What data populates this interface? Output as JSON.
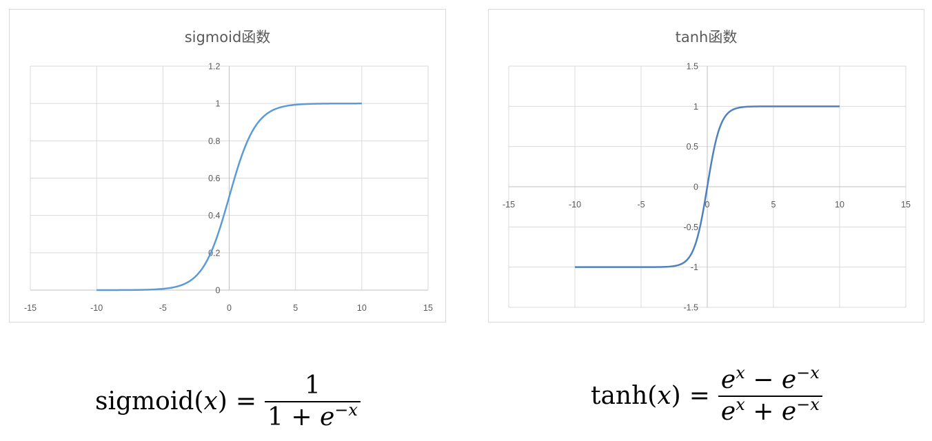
{
  "chart_data": [
    {
      "type": "line",
      "title": "sigmoid函数",
      "xlim": [
        -15,
        15
      ],
      "ylim": [
        0,
        1.2
      ],
      "x_ticks": [
        "-15",
        "-10",
        "-5",
        "0",
        "5",
        "10",
        "15"
      ],
      "y_ticks": [
        "0",
        "0.2",
        "0.4",
        "0.6",
        "0.8",
        "1",
        "1.2"
      ],
      "grid": true,
      "series": [
        {
          "color": "#5b9bd5",
          "x": [
            -10,
            -9,
            -8,
            -7,
            -6,
            -5,
            -4,
            -3,
            -2,
            -1,
            0,
            1,
            2,
            3,
            4,
            5,
            6,
            7,
            8,
            9,
            10
          ],
          "y": [
            4.54e-05,
            0.0001234,
            0.0003354,
            0.000911,
            0.002473,
            0.006693,
            0.017986,
            0.047426,
            0.119203,
            0.268941,
            0.5,
            0.731059,
            0.880797,
            0.952574,
            0.982014,
            0.993307,
            0.997527,
            0.999089,
            0.999665,
            0.999877,
            0.999955
          ]
        }
      ]
    },
    {
      "type": "line",
      "title": "tanh函数",
      "xlim": [
        -15,
        15
      ],
      "ylim": [
        -1.5,
        1.5
      ],
      "x_ticks": [
        "-15",
        "-10",
        "-5",
        "0",
        "5",
        "10",
        "15"
      ],
      "y_ticks": [
        "-1.5",
        "-1",
        "-0.5",
        "0",
        "0.5",
        "1",
        "1.5"
      ],
      "grid": true,
      "series": [
        {
          "color": "#4f81bd",
          "x": [
            -10,
            -9,
            -8,
            -7,
            -6,
            -5,
            -4,
            -3,
            -2,
            -1,
            0,
            1,
            2,
            3,
            4,
            5,
            6,
            7,
            8,
            9,
            10
          ],
          "y": [
            -1.0,
            -1.0,
            -1.0,
            -0.999998,
            -0.999988,
            -0.999909,
            -0.999329,
            -0.995055,
            -0.964028,
            -0.761594,
            0,
            0.761594,
            0.964028,
            0.995055,
            0.999329,
            0.999909,
            0.999988,
            0.999998,
            1.0,
            1.0,
            1.0
          ]
        }
      ]
    }
  ],
  "formulas": {
    "sigmoid": {
      "lhs": "sigmoid(",
      "var": "x",
      "close": ")",
      "eq": "=",
      "num": "1",
      "den_prefix": "1 + ",
      "e": "e",
      "exp_neg": "−x"
    },
    "tanh": {
      "lhs": "tanh(",
      "var": "x",
      "close": ")",
      "eq": "=",
      "e": "e",
      "exp_pos": "x",
      "exp_neg": "−x",
      "minus": " − ",
      "plus": " + "
    }
  }
}
